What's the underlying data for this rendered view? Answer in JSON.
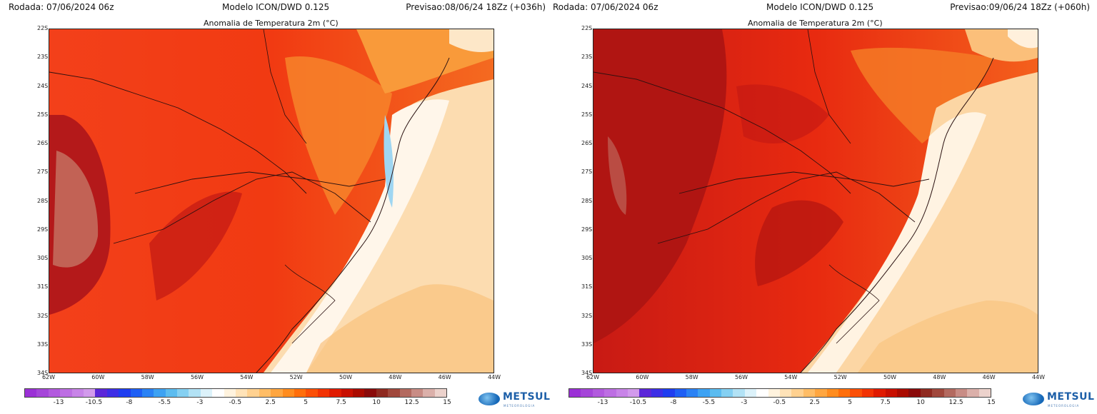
{
  "panels": [
    {
      "run": "Rodada: 07/06/2024 06z",
      "model": "Modelo ICON/DWD 0.125",
      "forecast": "Previsao:08/06/24 18Zz (+036h)",
      "title": "Anomalia de Temperatura 2m (°C)"
    },
    {
      "run": "Rodada: 07/06/2024 06z",
      "model": "Modelo ICON/DWD 0.125",
      "forecast": "Previsao:09/06/24 18Zz (+060h)",
      "title": "Anomalia de Temperatura 2m (°C)"
    }
  ],
  "lat_labels": [
    "22S",
    "23S",
    "24S",
    "25S",
    "26S",
    "27S",
    "28S",
    "29S",
    "30S",
    "31S",
    "32S",
    "33S",
    "34S"
  ],
  "lon_labels": [
    "62W",
    "60W",
    "58W",
    "56W",
    "54W",
    "52W",
    "50W",
    "48W",
    "46W",
    "44W"
  ],
  "colorbar": {
    "labels": [
      "-13",
      "-10.5",
      "-8",
      "-5.5",
      "-3",
      "-0.5",
      "2.5",
      "5",
      "7.5",
      "10",
      "12.5",
      "15"
    ],
    "colors": [
      "#9b30d6",
      "#a545d9",
      "#b25ade",
      "#bd6ee3",
      "#c884e8",
      "#d29aec",
      "#5b26d9",
      "#3d2ee6",
      "#1f3df0",
      "#1e5ff5",
      "#2a82f5",
      "#3da2f3",
      "#5cbcf0",
      "#85d0f2",
      "#b2e2f5",
      "#dcf2fa",
      "#ffffff",
      "#fff3de",
      "#ffe3b8",
      "#ffd190",
      "#ffbd66",
      "#ffa640",
      "#ff8c1e",
      "#ff6e0a",
      "#fb4f06",
      "#f23203",
      "#e01a00",
      "#c80f00",
      "#aa0a00",
      "#8a0a0a",
      "#8f2a20",
      "#a0483c",
      "#b36a60",
      "#c88c85",
      "#dbb0aa",
      "#ecd2cc"
    ]
  },
  "logo": {
    "name": "METSUL",
    "tagline": "METEOROLOGIA"
  }
}
